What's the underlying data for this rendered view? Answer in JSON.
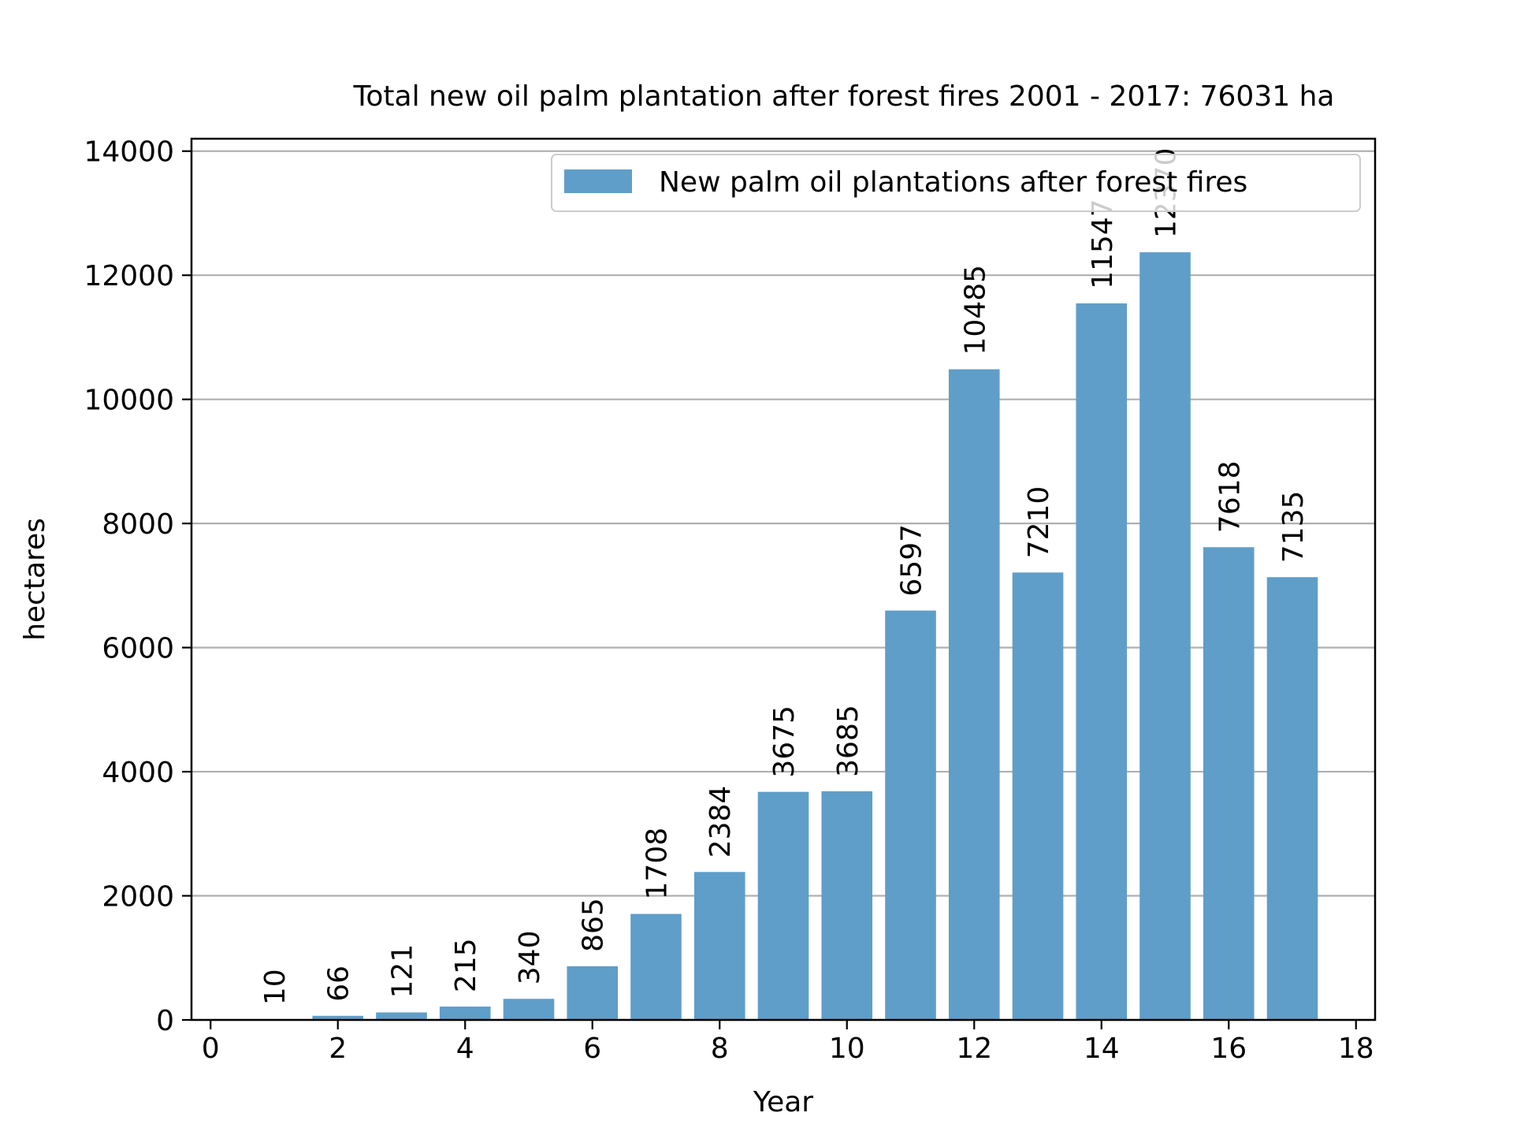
{
  "chart_data": {
    "type": "bar",
    "title": "Total new oil palm plantation after forest fires 2001 - 2017: 76031 ha",
    "xlabel": "Year",
    "ylabel": "hectares",
    "x": [
      1,
      2,
      3,
      4,
      5,
      6,
      7,
      8,
      9,
      10,
      11,
      12,
      13,
      14,
      15,
      16,
      17
    ],
    "series": [
      {
        "name": "New palm oil plantations after forest fires",
        "values": [
          10,
          66,
          121,
          215,
          340,
          865,
          1708,
          2384,
          3675,
          3685,
          6597,
          10485,
          7210,
          11547,
          12370,
          7618,
          7135
        ],
        "color": "#5f9ec9"
      }
    ],
    "xlim": [
      -0.3,
      18.3
    ],
    "ylim": [
      0,
      14200
    ],
    "xticks": [
      0,
      2,
      4,
      6,
      8,
      10,
      12,
      14,
      16,
      18
    ],
    "yticks": [
      0,
      2000,
      4000,
      6000,
      8000,
      10000,
      12000,
      14000
    ],
    "grid": "y",
    "legend_position": "top-right"
  }
}
